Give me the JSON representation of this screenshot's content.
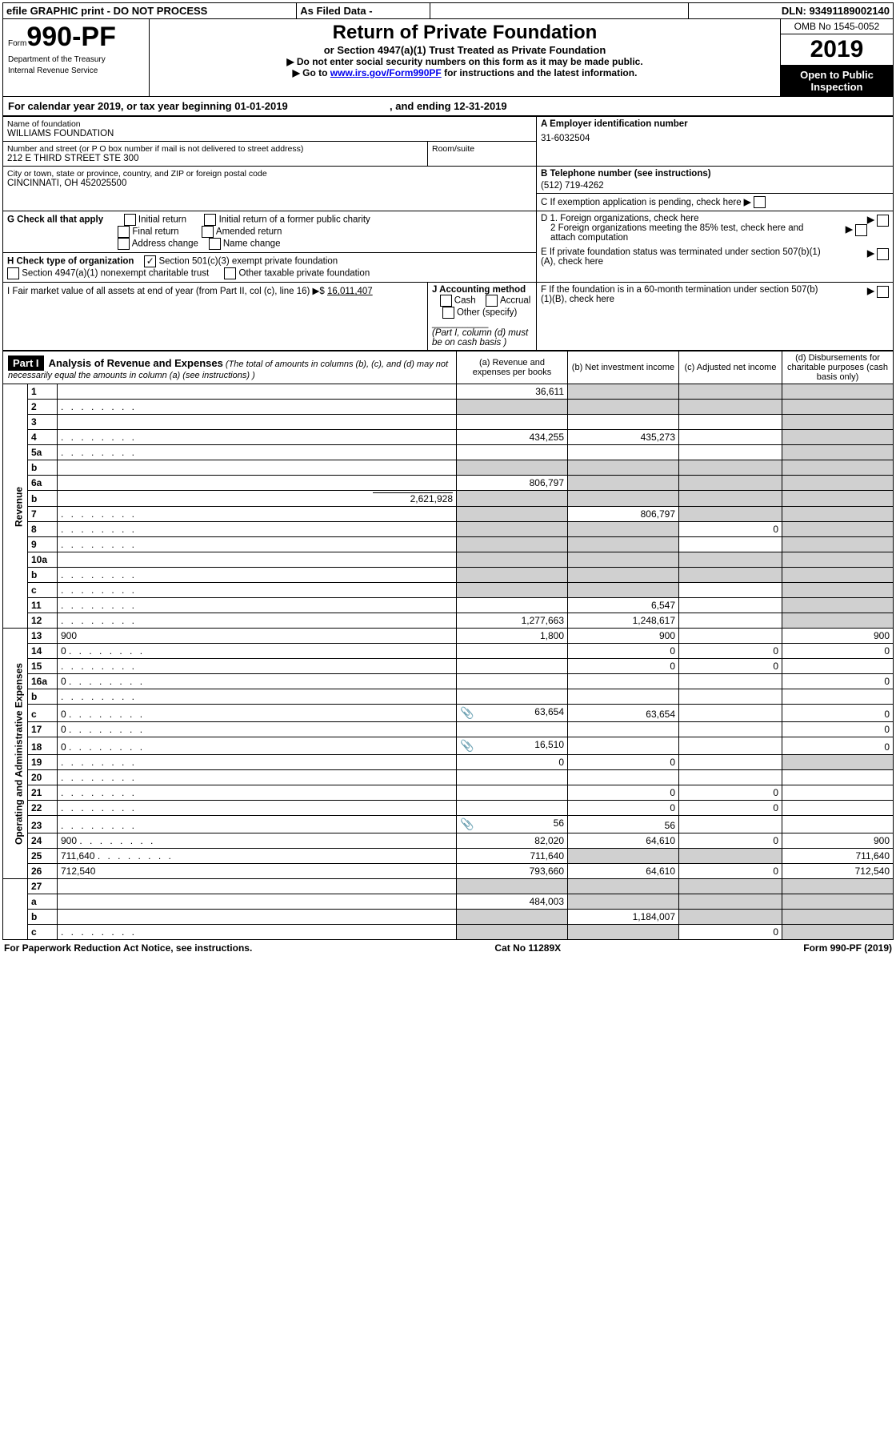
{
  "topbar": {
    "efile": "efile GRAPHIC print - DO NOT PROCESS",
    "asfiled": "As Filed Data -",
    "dln_label": "DLN:",
    "dln": "93491189002140"
  },
  "header": {
    "form_word": "Form",
    "form_num": "990-PF",
    "dept": "Department of the Treasury",
    "irs": "Internal Revenue Service",
    "title": "Return of Private Foundation",
    "subtitle": "or Section 4947(a)(1) Trust Treated as Private Foundation",
    "note1": "▶ Do not enter social security numbers on this form as it may be made public.",
    "note2_a": "▶ Go to ",
    "note2_link": "www.irs.gov/Form990PF",
    "note2_b": " for instructions and the latest information.",
    "omb": "OMB No 1545-0052",
    "year": "2019",
    "open": "Open to Public Inspection"
  },
  "calyear": {
    "a": "For calendar year 2019, or tax year beginning 01-01-2019",
    "b": ", and ending 12-31-2019"
  },
  "info": {
    "name_lbl": "Name of foundation",
    "name": "WILLIAMS FOUNDATION",
    "addr_lbl": "Number and street (or P O  box number if mail is not delivered to street address)",
    "addr": "212 E THIRD STREET STE 300",
    "room_lbl": "Room/suite",
    "city_lbl": "City or town, state or province, country, and ZIP or foreign postal code",
    "city": "CINCINNATI, OH  452025500",
    "A_lbl": "A Employer identification number",
    "A_val": "31-6032504",
    "B_lbl": "B Telephone number (see instructions)",
    "B_val": "(512) 719-4262",
    "C_lbl": "C  If exemption application is pending, check here",
    "G_lbl": "G Check all that apply",
    "G1": "Initial return",
    "G2": "Initial return of a former public charity",
    "G3": "Final return",
    "G4": "Amended return",
    "G5": "Address change",
    "G6": "Name change",
    "D1": "D 1. Foreign organizations, check here",
    "D2": "2  Foreign organizations meeting the 85% test, check here and attach computation",
    "E": "E  If private foundation status was terminated under section 507(b)(1)(A), check here",
    "H_lbl": "H Check type of organization",
    "H1": "Section 501(c)(3) exempt private foundation",
    "H2": "Section 4947(a)(1) nonexempt charitable trust",
    "H3": "Other taxable private foundation",
    "F": "F  If the foundation is in a 60-month termination under section 507(b)(1)(B), check here",
    "I_lbl": "I Fair market value of all assets at end of year (from Part II, col  (c), line 16) ▶$ ",
    "I_val": "16,011,407",
    "J_lbl": "J Accounting method",
    "J1": "Cash",
    "J2": "Accrual",
    "J3": "Other (specify)",
    "J_note": "(Part I, column (d) must be on cash basis )"
  },
  "part1": {
    "hdr": "Part I",
    "title": "Analysis of Revenue and Expenses",
    "sub": " (The total of amounts in columns (b), (c), and (d) may not necessarily equal the amounts in column (a) (see instructions) )",
    "col_a": "(a)  Revenue and expenses per books",
    "col_b": "(b)  Net investment income",
    "col_c": "(c)  Adjusted net income",
    "col_d": "(d)  Disbursements for charitable purposes (cash basis only)",
    "side_rev": "Revenue",
    "side_exp": "Operating and Administrative Expenses"
  },
  "rows": [
    {
      "n": "1",
      "d": "",
      "a": "36,611",
      "b": "",
      "c": "",
      "sb": 1,
      "sc": 1,
      "sd": 1
    },
    {
      "n": "2",
      "d": "",
      "dots": 1,
      "a": "",
      "b": "",
      "c": "",
      "sb": 1,
      "sc": 1,
      "sd": 1,
      "sa": 1
    },
    {
      "n": "3",
      "d": "",
      "a": "",
      "b": "",
      "c": "",
      "sd": 1
    },
    {
      "n": "4",
      "d": "",
      "dots": 1,
      "a": "434,255",
      "b": "435,273",
      "c": "",
      "sd": 1
    },
    {
      "n": "5a",
      "d": "",
      "dots": 1,
      "a": "",
      "b": "",
      "c": "",
      "sd": 1
    },
    {
      "n": "b",
      "d": "",
      "a": "",
      "b": "",
      "c": "",
      "sa": 1,
      "sb": 1,
      "sc": 1,
      "sd": 1
    },
    {
      "n": "6a",
      "d": "",
      "a": "806,797",
      "b": "",
      "c": "",
      "sb": 1,
      "sc": 1,
      "sd": 1
    },
    {
      "n": "b",
      "d": "",
      "tail": "2,621,928",
      "a": "",
      "b": "",
      "c": "",
      "sa": 1,
      "sb": 1,
      "sc": 1,
      "sd": 1
    },
    {
      "n": "7",
      "d": "",
      "dots": 1,
      "a": "",
      "b": "806,797",
      "c": "",
      "sa": 1,
      "sc": 1,
      "sd": 1
    },
    {
      "n": "8",
      "d": "",
      "dots": 1,
      "a": "",
      "b": "",
      "c": "0",
      "sa": 1,
      "sb": 1,
      "sd": 1
    },
    {
      "n": "9",
      "d": "",
      "dots": 1,
      "a": "",
      "b": "",
      "c": "",
      "sa": 1,
      "sb": 1,
      "sd": 1
    },
    {
      "n": "10a",
      "d": "",
      "a": "",
      "b": "",
      "c": "",
      "sa": 1,
      "sb": 1,
      "sc": 1,
      "sd": 1
    },
    {
      "n": "b",
      "d": "",
      "dots": 1,
      "a": "",
      "b": "",
      "c": "",
      "sa": 1,
      "sb": 1,
      "sc": 1,
      "sd": 1
    },
    {
      "n": "c",
      "d": "",
      "dots": 1,
      "a": "",
      "b": "",
      "c": "",
      "sa": 1,
      "sb": 1,
      "sd": 1
    },
    {
      "n": "11",
      "d": "",
      "dots": 1,
      "a": "",
      "b": "6,547",
      "c": "",
      "sd": 1
    },
    {
      "n": "12",
      "d": "",
      "dots": 1,
      "a": "1,277,663",
      "b": "1,248,617",
      "c": "",
      "sd": 1
    }
  ],
  "exp": [
    {
      "n": "13",
      "d": "900",
      "a": "1,800",
      "b": "900",
      "c": ""
    },
    {
      "n": "14",
      "d": "0",
      "dots": 1,
      "a": "",
      "b": "0",
      "c": "0"
    },
    {
      "n": "15",
      "d": "",
      "dots": 1,
      "a": "",
      "b": "0",
      "c": "0"
    },
    {
      "n": "16a",
      "d": "0",
      "dots": 1,
      "a": "",
      "b": "",
      "c": ""
    },
    {
      "n": "b",
      "d": "",
      "dots": 1,
      "a": "",
      "b": "",
      "c": ""
    },
    {
      "n": "c",
      "d": "0",
      "dots": 1,
      "icon": 1,
      "a": "63,654",
      "b": "63,654",
      "c": ""
    },
    {
      "n": "17",
      "d": "0",
      "dots": 1,
      "a": "",
      "b": "",
      "c": ""
    },
    {
      "n": "18",
      "d": "0",
      "dots": 1,
      "icon": 1,
      "a": "16,510",
      "b": "",
      "c": ""
    },
    {
      "n": "19",
      "d": "",
      "dots": 1,
      "a": "0",
      "b": "0",
      "c": "",
      "sd": 1
    },
    {
      "n": "20",
      "d": "",
      "dots": 1,
      "a": "",
      "b": "",
      "c": ""
    },
    {
      "n": "21",
      "d": "",
      "dots": 1,
      "a": "",
      "b": "0",
      "c": "0"
    },
    {
      "n": "22",
      "d": "",
      "dots": 1,
      "a": "",
      "b": "0",
      "c": "0"
    },
    {
      "n": "23",
      "d": "",
      "dots": 1,
      "icon": 1,
      "a": "56",
      "b": "56",
      "c": ""
    },
    {
      "n": "24",
      "d": "900",
      "dots": 1,
      "a": "82,020",
      "b": "64,610",
      "c": "0"
    },
    {
      "n": "25",
      "d": "711,640",
      "dots": 1,
      "a": "711,640",
      "b": "",
      "c": "",
      "sb": 1,
      "sc": 1
    },
    {
      "n": "26",
      "d": "712,540",
      "a": "793,660",
      "b": "64,610",
      "c": "0"
    }
  ],
  "bot": [
    {
      "n": "27",
      "d": "",
      "a": "",
      "b": "",
      "c": "",
      "sa": 1,
      "sb": 1,
      "sc": 1,
      "sd": 1
    },
    {
      "n": "a",
      "d": "",
      "a": "484,003",
      "b": "",
      "c": "",
      "sb": 1,
      "sc": 1,
      "sd": 1
    },
    {
      "n": "b",
      "d": "",
      "a": "",
      "b": "1,184,007",
      "c": "",
      "sa": 1,
      "sc": 1,
      "sd": 1
    },
    {
      "n": "c",
      "d": "",
      "dots": 1,
      "a": "",
      "b": "",
      "c": "0",
      "sa": 1,
      "sb": 1,
      "sd": 1
    }
  ],
  "footer": {
    "a": "For Paperwork Reduction Act Notice, see instructions.",
    "b": "Cat No  11289X",
    "c": "Form 990-PF (2019)"
  }
}
